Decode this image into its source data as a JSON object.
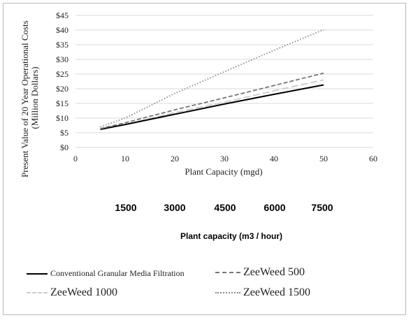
{
  "chart_data": {
    "type": "line",
    "x": [
      5,
      10,
      20,
      30,
      40,
      50
    ],
    "xlabel": "Plant Capacity (mgd)",
    "ylabel_lines": [
      "Present Value of 20 Year Operational Costs",
      "(Million Dollars)"
    ],
    "xlim": [
      0,
      60
    ],
    "ylim": [
      0,
      45
    ],
    "x_ticks": [
      "0",
      "10",
      "20",
      "30",
      "40",
      "50",
      "60"
    ],
    "y_ticks": [
      "$0",
      "$5",
      "$10",
      "$15",
      "$20",
      "$25",
      "$30",
      "$35",
      "$40",
      "$45"
    ],
    "grid": "horizontal",
    "series": [
      {
        "name": "Conventional Granular Media Filtration",
        "values": [
          6.2,
          7.8,
          11.3,
          14.8,
          18.1,
          21.3
        ],
        "color": "#000000",
        "dash": "solid"
      },
      {
        "name": "ZeeWeed 500",
        "values": [
          6.4,
          8.4,
          12.8,
          16.9,
          21.1,
          25.3
        ],
        "color": "#777777",
        "dash": "dashed"
      },
      {
        "name": "ZeeWeed 1000",
        "values": [
          6.0,
          7.8,
          11.9,
          15.4,
          19.3,
          23.0
        ],
        "color": "#cccccc",
        "dash": "longdash"
      },
      {
        "name": "ZeeWeed 1500",
        "values": [
          7.0,
          10.0,
          18.4,
          25.8,
          33.1,
          40.1
        ],
        "color": "#888888",
        "dash": "dotted"
      }
    ],
    "secondary_axis": {
      "label": "Plant capacity (m3 / hour)",
      "labels": [
        "1500",
        "3000",
        "4500",
        "6000",
        "7500"
      ]
    }
  }
}
